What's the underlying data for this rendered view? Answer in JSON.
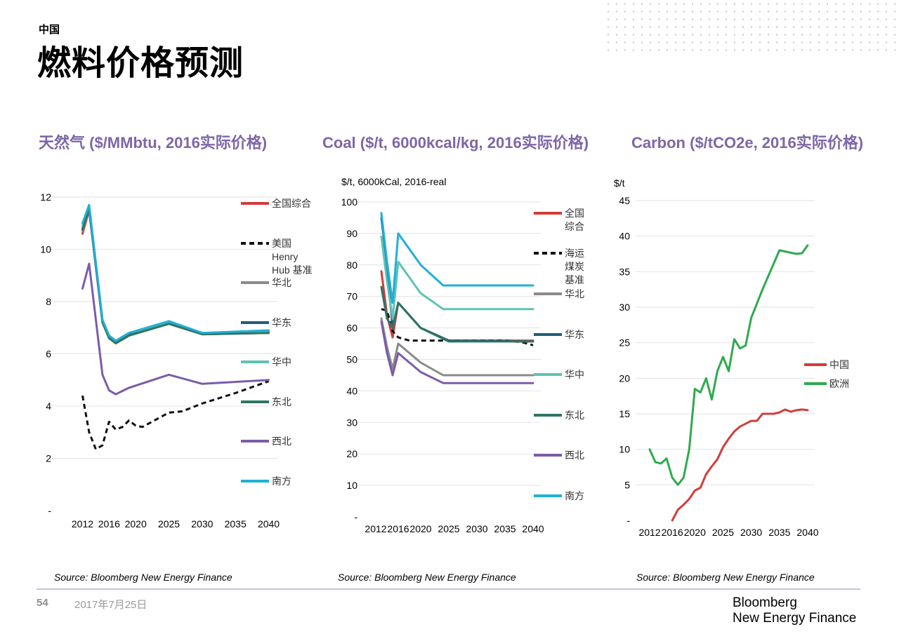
{
  "header": {
    "kicker": "中国",
    "title": "燃料价格预测"
  },
  "footer": {
    "page_number": "54",
    "date": "2017年7月25日",
    "brand_line1": "Bloomberg",
    "brand_line2": "New Energy Finance"
  },
  "chart_data": [
    {
      "type": "line",
      "title": "天然气 ($/MMbtu, 2016实际价格)",
      "unit_label": "",
      "source": "Source: Bloomberg New Energy Finance",
      "xlim": [
        2011,
        2041
      ],
      "ylim": [
        0,
        12
      ],
      "yticks": [
        0,
        2,
        4,
        6,
        8,
        10,
        12
      ],
      "ytick_labels": [
        "-",
        "2",
        "4",
        "6",
        "8",
        "10",
        "12"
      ],
      "xticks": [
        2012,
        2016,
        2020,
        2025,
        2030,
        2035,
        2040
      ],
      "xtick_labels": [
        "2012",
        "2016",
        "2020",
        "2025",
        "2030",
        "2035",
        "2040"
      ],
      "series": [
        {
          "name": "全国综合",
          "color": "#d23c3c",
          "dash": false,
          "points": [
            [
              2012,
              10.6
            ],
            [
              2013,
              11.5
            ],
            [
              2015,
              7.2
            ],
            [
              2016,
              6.6
            ],
            [
              2017,
              6.4
            ],
            [
              2019,
              6.7
            ],
            [
              2025,
              7.15
            ],
            [
              2030,
              6.75
            ],
            [
              2040,
              6.8
            ]
          ]
        },
        {
          "name": "美国 Henry Hub 基准",
          "color": "#111111",
          "dash": true,
          "points": [
            [
              2012,
              4.4
            ],
            [
              2013,
              3.0
            ],
            [
              2014,
              2.35
            ],
            [
              2015,
              2.5
            ],
            [
              2016,
              3.4
            ],
            [
              2017,
              3.1
            ],
            [
              2018,
              3.2
            ],
            [
              2019,
              3.45
            ],
            [
              2020,
              3.25
            ],
            [
              2021,
              3.2
            ],
            [
              2025,
              3.75
            ],
            [
              2027,
              3.8
            ],
            [
              2030,
              4.1
            ],
            [
              2035,
              4.5
            ],
            [
              2040,
              4.95
            ]
          ]
        },
        {
          "name": "华北",
          "color": "#8a8a8a",
          "dash": false,
          "points": [
            [
              2012,
              10.7
            ],
            [
              2013,
              11.55
            ],
            [
              2015,
              7.25
            ],
            [
              2016,
              6.65
            ],
            [
              2017,
              6.45
            ],
            [
              2019,
              6.75
            ],
            [
              2025,
              7.2
            ],
            [
              2030,
              6.8
            ],
            [
              2040,
              6.85
            ]
          ]
        },
        {
          "name": "华东",
          "color": "#1f5e7a",
          "dash": false,
          "points": [
            [
              2012,
              10.8
            ],
            [
              2013,
              11.6
            ],
            [
              2015,
              7.25
            ],
            [
              2016,
              6.7
            ],
            [
              2017,
              6.45
            ],
            [
              2019,
              6.75
            ],
            [
              2025,
              7.2
            ],
            [
              2030,
              6.8
            ],
            [
              2040,
              6.85
            ]
          ]
        },
        {
          "name": "华中",
          "color": "#5ec2b5",
          "dash": false,
          "points": [
            [
              2012,
              10.9
            ],
            [
              2013,
              11.65
            ],
            [
              2015,
              7.3
            ],
            [
              2016,
              6.7
            ],
            [
              2017,
              6.5
            ],
            [
              2019,
              6.8
            ],
            [
              2025,
              7.2
            ],
            [
              2030,
              6.8
            ],
            [
              2040,
              6.85
            ]
          ]
        },
        {
          "name": "东北",
          "color": "#2e7566",
          "dash": false,
          "points": [
            [
              2012,
              10.75
            ],
            [
              2013,
              11.55
            ],
            [
              2015,
              7.2
            ],
            [
              2016,
              6.6
            ],
            [
              2017,
              6.4
            ],
            [
              2019,
              6.7
            ],
            [
              2025,
              7.15
            ],
            [
              2030,
              6.75
            ],
            [
              2040,
              6.8
            ]
          ]
        },
        {
          "name": "西北",
          "color": "#7b5ca8",
          "dash": false,
          "points": [
            [
              2012,
              8.5
            ],
            [
              2013,
              9.45
            ],
            [
              2015,
              5.2
            ],
            [
              2016,
              4.6
            ],
            [
              2017,
              4.45
            ],
            [
              2019,
              4.7
            ],
            [
              2025,
              5.2
            ],
            [
              2030,
              4.85
            ],
            [
              2040,
              5.0
            ]
          ]
        },
        {
          "name": "南方",
          "color": "#1fb0d8",
          "dash": false,
          "points": [
            [
              2012,
              11.0
            ],
            [
              2013,
              11.7
            ],
            [
              2015,
              7.3
            ],
            [
              2016,
              6.7
            ],
            [
              2017,
              6.5
            ],
            [
              2019,
              6.8
            ],
            [
              2025,
              7.25
            ],
            [
              2030,
              6.8
            ],
            [
              2040,
              6.9
            ]
          ]
        }
      ]
    },
    {
      "type": "line",
      "title": "Coal ($/t, 6000kcal/kg, 2016实际价格)",
      "unit_label": "$/t, 6000kCal, 2016-real",
      "source": "Source: Bloomberg New Energy Finance",
      "xlim": [
        2011,
        2041
      ],
      "ylim": [
        0,
        100
      ],
      "yticks": [
        0,
        10,
        20,
        30,
        40,
        50,
        60,
        70,
        80,
        90,
        100
      ],
      "ytick_labels": [
        "-",
        "10",
        "20",
        "30",
        "40",
        "50",
        "60",
        "70",
        "80",
        "90",
        "100"
      ],
      "xticks": [
        2012,
        2016,
        2020,
        2025,
        2030,
        2035,
        2040
      ],
      "xtick_labels": [
        "2012",
        "2016",
        "2020",
        "2025",
        "2030",
        "2035",
        "2040"
      ],
      "series": [
        {
          "name": "全国 综合",
          "color": "#d23c3c",
          "dash": false,
          "points": [
            [
              2013,
              78
            ],
            [
              2014,
              64
            ],
            [
              2015,
              57
            ],
            [
              2016,
              68
            ],
            [
              2020,
              60
            ],
            [
              2025,
              56
            ],
            [
              2040,
              56
            ]
          ]
        },
        {
          "name": "海运 煤炭 基准",
          "color": "#111111",
          "dash": true,
          "points": [
            [
              2013,
              66
            ],
            [
              2014,
              65.5
            ],
            [
              2015,
              59
            ],
            [
              2016,
              57
            ],
            [
              2018,
              56
            ],
            [
              2025,
              56
            ],
            [
              2035,
              56
            ],
            [
              2038,
              55.5
            ],
            [
              2040,
              54.5
            ]
          ]
        },
        {
          "name": "华北",
          "color": "#8a8a8a",
          "dash": false,
          "points": [
            [
              2013,
              63
            ],
            [
              2014,
              54
            ],
            [
              2015,
              47
            ],
            [
              2016,
              55
            ],
            [
              2020,
              49
            ],
            [
              2024,
              45
            ],
            [
              2040,
              45
            ]
          ]
        },
        {
          "name": "华东",
          "color": "#1f5e7a",
          "dash": false,
          "points": [
            [
              2013,
              95
            ],
            [
              2014,
              80
            ],
            [
              2015,
              60
            ],
            [
              2016,
              68
            ],
            [
              2020,
              60
            ],
            [
              2025,
              56
            ],
            [
              2040,
              55.7
            ]
          ]
        },
        {
          "name": "华中",
          "color": "#5ec2b5",
          "dash": false,
          "points": [
            [
              2013,
              89
            ],
            [
              2014,
              75
            ],
            [
              2015,
              63
            ],
            [
              2016,
              81
            ],
            [
              2020,
              71
            ],
            [
              2024,
              66
            ],
            [
              2040,
              66
            ]
          ]
        },
        {
          "name": "东北",
          "color": "#2e7566",
          "dash": false,
          "points": [
            [
              2013,
              73
            ],
            [
              2014,
              63
            ],
            [
              2015,
              60
            ],
            [
              2016,
              68
            ],
            [
              2020,
              60
            ],
            [
              2025,
              55.7
            ],
            [
              2040,
              55.7
            ]
          ]
        },
        {
          "name": "西北",
          "color": "#7b5ca8",
          "dash": false,
          "points": [
            [
              2013,
              62
            ],
            [
              2014,
              52
            ],
            [
              2015,
              45
            ],
            [
              2016,
              52
            ],
            [
              2020,
              46
            ],
            [
              2024,
              42.5
            ],
            [
              2040,
              42.5
            ]
          ]
        },
        {
          "name": "南方",
          "color": "#1fb0d8",
          "dash": false,
          "points": [
            [
              2013,
              96.5
            ],
            [
              2014,
              81
            ],
            [
              2015,
              68
            ],
            [
              2016,
              90
            ],
            [
              2020,
              80
            ],
            [
              2024,
              73.5
            ],
            [
              2040,
              73.5
            ]
          ]
        }
      ]
    },
    {
      "type": "line",
      "title": "Carbon ($/tCO2e, 2016实际价格)",
      "unit_label": "$/t",
      "source": "Source: Bloomberg New Energy Finance",
      "xlim": [
        2011,
        2041
      ],
      "ylim": [
        0,
        45
      ],
      "yticks": [
        0,
        5,
        10,
        15,
        20,
        25,
        30,
        35,
        40,
        45
      ],
      "ytick_labels": [
        "-",
        "5",
        "10",
        "15",
        "20",
        "25",
        "30",
        "35",
        "40",
        "45"
      ],
      "xticks": [
        2012,
        2016,
        2020,
        2025,
        2030,
        2035,
        2040
      ],
      "xtick_labels": [
        "2012",
        "2016",
        "2020",
        "2025",
        "2030",
        "2035",
        "2040"
      ],
      "series": [
        {
          "name": "中国",
          "color": "#d23c3c",
          "dash": false,
          "points": [
            [
              2016,
              0
            ],
            [
              2017,
              1.5
            ],
            [
              2018,
              2.2
            ],
            [
              2019,
              3.0
            ],
            [
              2020,
              4.2
            ],
            [
              2021,
              4.6
            ],
            [
              2022,
              6.5
            ],
            [
              2023,
              7.6
            ],
            [
              2024,
              8.6
            ],
            [
              2025,
              10.3
            ],
            [
              2026,
              11.5
            ],
            [
              2027,
              12.5
            ],
            [
              2028,
              13.2
            ],
            [
              2029,
              13.6
            ],
            [
              2030,
              14.0
            ],
            [
              2031,
              14.0
            ],
            [
              2032,
              15.0
            ],
            [
              2033,
              15.0
            ],
            [
              2034,
              15.0
            ],
            [
              2035,
              15.2
            ],
            [
              2036,
              15.6
            ],
            [
              2037,
              15.3
            ],
            [
              2038,
              15.5
            ],
            [
              2039,
              15.6
            ],
            [
              2040,
              15.5
            ]
          ]
        },
        {
          "name": "欧洲",
          "color": "#2eaa4e",
          "dash": false,
          "points": [
            [
              2012,
              10
            ],
            [
              2013,
              8.2
            ],
            [
              2014,
              8.0
            ],
            [
              2015,
              8.7
            ],
            [
              2016,
              6.0
            ],
            [
              2017,
              5.0
            ],
            [
              2018,
              6.0
            ],
            [
              2019,
              10.0
            ],
            [
              2020,
              18.5
            ],
            [
              2021,
              18.0
            ],
            [
              2022,
              20.0
            ],
            [
              2023,
              17.0
            ],
            [
              2024,
              21.0
            ],
            [
              2025,
              23.0
            ],
            [
              2026,
              21.0
            ],
            [
              2027,
              25.5
            ],
            [
              2028,
              24.2
            ],
            [
              2029,
              24.6
            ],
            [
              2030,
              28.5
            ],
            [
              2032,
              32.5
            ],
            [
              2035,
              38.0
            ],
            [
              2038,
              37.5
            ],
            [
              2039,
              37.6
            ],
            [
              2040,
              38.7
            ]
          ]
        }
      ]
    }
  ]
}
